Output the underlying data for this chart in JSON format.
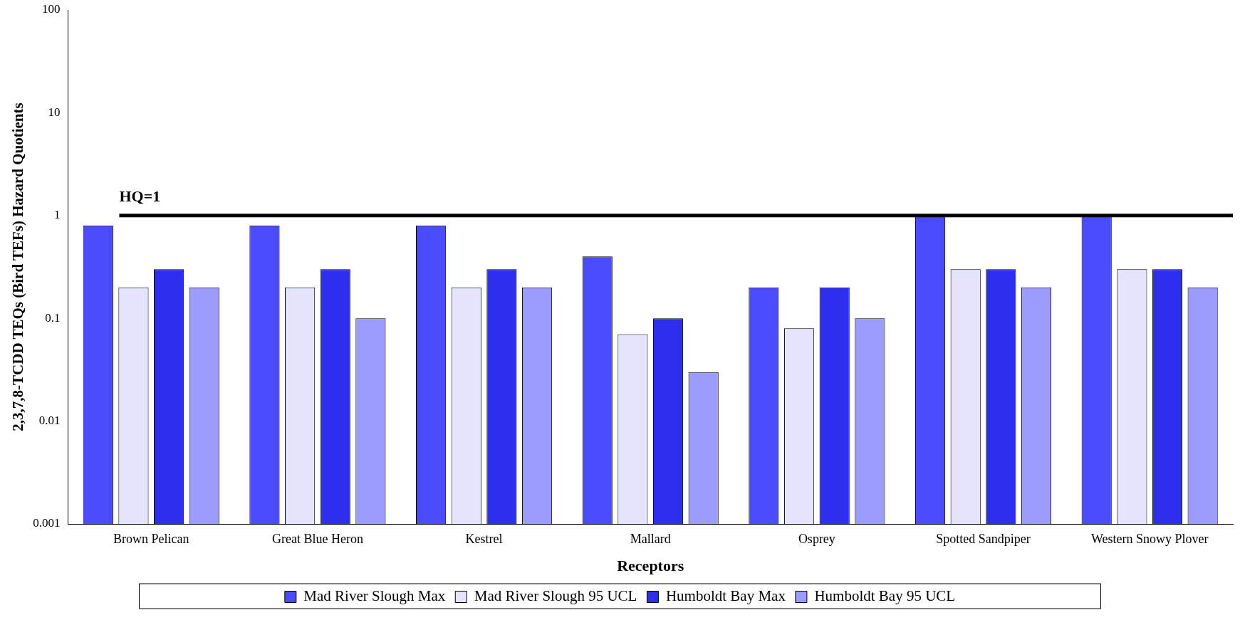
{
  "chart_data": {
    "type": "bar",
    "xlabel": "Receptors",
    "ylabel": "2,3,7,8-TCDD TEQs (Bird TEFs) Hazard Quotients",
    "categories": [
      "Brown Pelican",
      "Great Blue Heron",
      "Kestrel",
      "Mallard",
      "Osprey",
      "Spotted Sandpiper",
      "Western Snowy Plover"
    ],
    "series": [
      {
        "name": "Mad River Slough Max",
        "color": "#4a4aff",
        "values": [
          0.8,
          0.8,
          0.8,
          0.4,
          0.2,
          1,
          1
        ]
      },
      {
        "name": "Mad River Slough 95 UCL",
        "color": "#e4e4ff",
        "values": [
          0.2,
          0.2,
          0.2,
          0.07,
          0.08,
          0.3,
          0.3
        ]
      },
      {
        "name": "Humboldt Bay Max",
        "color": "#2e2ef0",
        "values": [
          0.3,
          0.3,
          0.3,
          0.1,
          0.2,
          0.3,
          0.3
        ]
      },
      {
        "name": "Humboldt Bay 95 UCL",
        "color": "#9c9cff",
        "values": [
          0.2,
          0.1,
          0.2,
          0.03,
          0.1,
          0.2,
          0.2
        ]
      }
    ],
    "log": true,
    "ylim": [
      0.001,
      100
    ],
    "yticks": [
      0.001,
      0.01,
      0.1,
      1,
      10,
      100
    ],
    "grid": false,
    "legend": "bottom",
    "ref_lines": [
      {
        "axis": "y",
        "value": 1,
        "label": "HQ=1",
        "color": "#000000"
      }
    ]
  }
}
